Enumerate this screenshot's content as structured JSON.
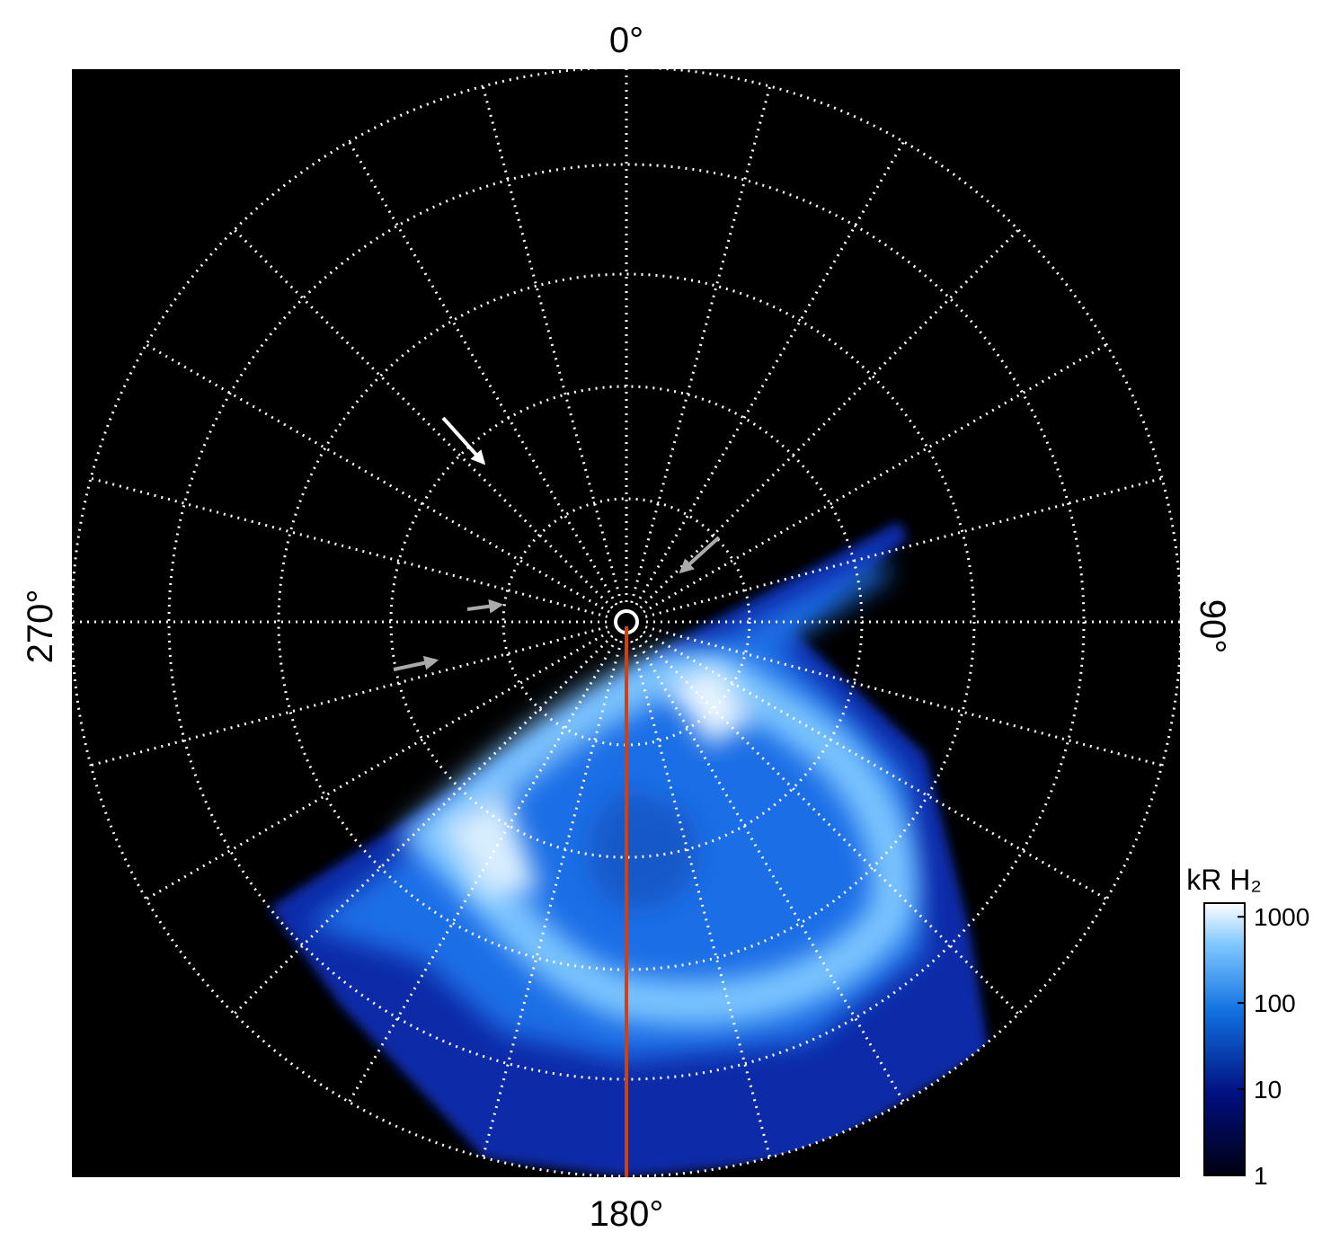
{
  "labels": {
    "top": "0°",
    "right": "90°",
    "bottom": "180°",
    "left": "270°"
  },
  "colorbar": {
    "title": "kR H₂",
    "ticks": [
      1,
      10,
      100,
      1000
    ],
    "lim": [
      1,
      1440
    ],
    "log": true
  }
}
